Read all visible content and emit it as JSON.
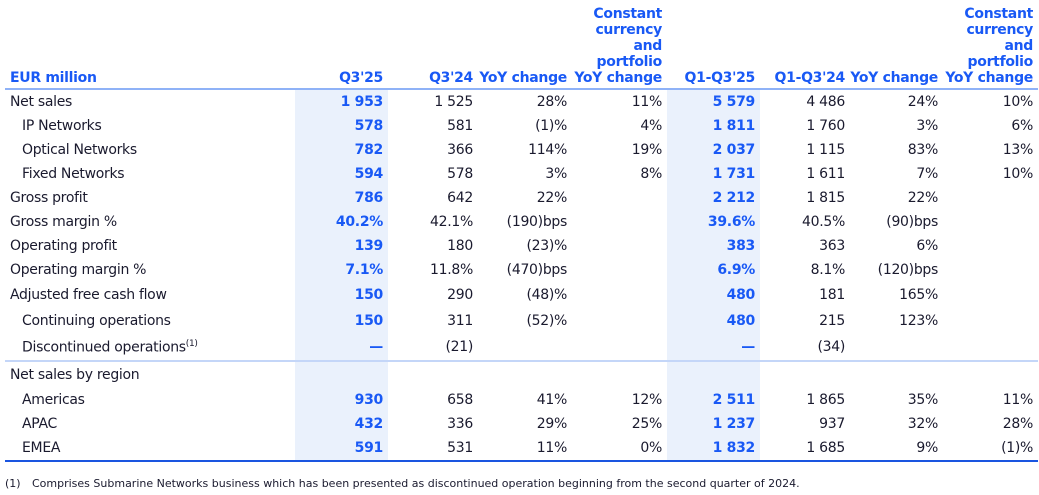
{
  "headers": [
    "EUR million",
    "Q3'25",
    "Q3'24",
    "YoY change",
    "Constant currency and portfolio YoY change",
    "Q1-Q3'25",
    "Q1-Q3'24",
    "YoY change",
    "Constant currency and portfolio YoY change"
  ],
  "rows": [
    {
      "label": "Net sales",
      "indent": false,
      "cells": [
        "1 953",
        "1 525",
        "28%",
        "11%",
        "5 579",
        "4 486",
        "24%",
        "10%"
      ]
    },
    {
      "label": "IP Networks",
      "indent": true,
      "cells": [
        "578",
        "581",
        "(1)%",
        "4%",
        "1 811",
        "1 760",
        "3%",
        "6%"
      ]
    },
    {
      "label": "Optical Networks",
      "indent": true,
      "cells": [
        "782",
        "366",
        "114%",
        "19%",
        "2 037",
        "1 115",
        "83%",
        "13%"
      ]
    },
    {
      "label": "Fixed Networks",
      "indent": true,
      "cells": [
        "594",
        "578",
        "3%",
        "8%",
        "1 731",
        "1 611",
        "7%",
        "10%"
      ]
    },
    {
      "label": "Gross profit",
      "indent": false,
      "cells": [
        "786",
        "642",
        "22%",
        "",
        "2 212",
        "1 815",
        "22%",
        ""
      ]
    },
    {
      "label": "Gross margin %",
      "indent": false,
      "cells": [
        "40.2%",
        "42.1%",
        "(190)bps",
        "",
        "39.6%",
        "40.5%",
        "(90)bps",
        ""
      ]
    },
    {
      "label": "Operating profit",
      "indent": false,
      "cells": [
        "139",
        "180",
        "(23)%",
        "",
        "383",
        "363",
        "6%",
        ""
      ]
    },
    {
      "label": "Operating margin %",
      "indent": false,
      "cells": [
        "7.1%",
        "11.8%",
        "(470)bps",
        "",
        "6.9%",
        "8.1%",
        "(120)bps",
        ""
      ]
    },
    {
      "label": "Adjusted free cash flow",
      "indent": false,
      "cells": [
        "150",
        "290",
        "(48)%",
        "",
        "480",
        "181",
        "165%",
        ""
      ]
    },
    {
      "label": "Continuing operations",
      "indent": true,
      "cells": [
        "150",
        "311",
        "(52)%",
        "",
        "480",
        "215",
        "123%",
        ""
      ]
    },
    {
      "label": "Discontinued operations",
      "note": "(1)",
      "indent": true,
      "cells": [
        "—",
        "(21)",
        "",
        "",
        "—",
        "(34)",
        "",
        ""
      ]
    },
    {
      "label": "Net sales by region",
      "indent": false,
      "cells": [
        "",
        "",
        "",
        "",
        "",
        "",
        "",
        ""
      ]
    },
    {
      "label": "Americas",
      "indent": true,
      "cells": [
        "930",
        "658",
        "41%",
        "12%",
        "2 511",
        "1 865",
        "35%",
        "11%"
      ]
    },
    {
      "label": "APAC",
      "indent": true,
      "cells": [
        "432",
        "336",
        "29%",
        "25%",
        "1 237",
        "937",
        "32%",
        "28%"
      ]
    },
    {
      "label": "EMEA",
      "indent": true,
      "cells": [
        "591",
        "531",
        "11%",
        "0%",
        "1 832",
        "1 685",
        "9%",
        "(1)%"
      ]
    }
  ],
  "footnote": {
    "marker": "(1)",
    "text": "Comprises Submarine Networks business which has been presented as discontinued operation beginning from the second quarter of 2024."
  },
  "colors": {
    "accent": "#1959f5",
    "highlight_bg": "#eaf1fc"
  }
}
